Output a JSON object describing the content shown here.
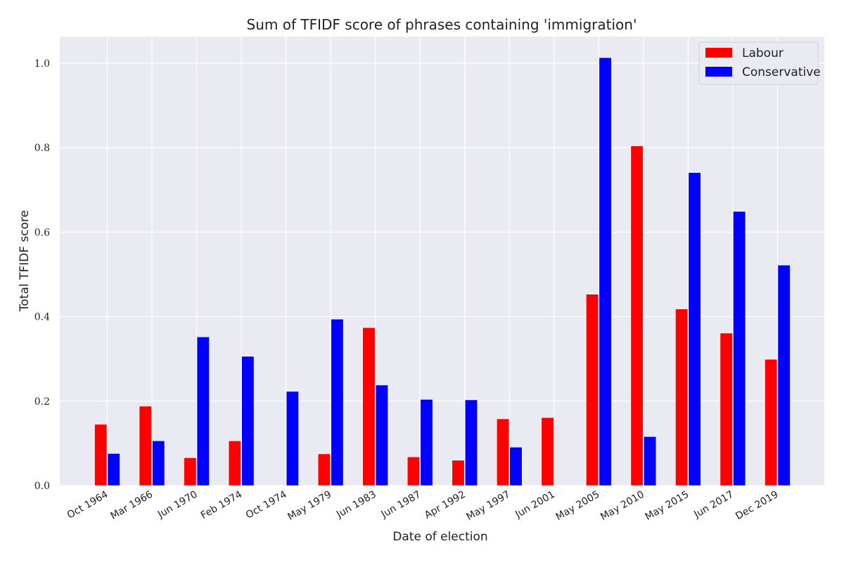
{
  "chart_data": {
    "type": "bar",
    "title": "Sum of TFIDF score of phrases containing 'immigration'",
    "xlabel": "Date of election",
    "ylabel": "Total TFIDF score",
    "categories": [
      "Oct 1964",
      "Mar 1966",
      "Jun 1970",
      "Feb 1974",
      "Oct 1974",
      "May 1979",
      "Jun 1983",
      "Jun 1987",
      "Apr 1992",
      "May 1997",
      "Jun 2001",
      "May 2005",
      "May 2010",
      "May 2015",
      "Jun 2017",
      "Dec 2019"
    ],
    "series": [
      {
        "name": "Labour",
        "color": "#ff0000",
        "values": [
          0.145,
          0.188,
          0.066,
          0.106,
          0,
          0.075,
          0.374,
          0.068,
          0.06,
          0.158,
          0.161,
          0.453,
          0.804,
          0.418,
          0.361,
          0.299
        ]
      },
      {
        "name": "Conservative",
        "color": "#0000ff",
        "values": [
          0.076,
          0.106,
          0.352,
          0.306,
          0.223,
          0.394,
          0.238,
          0.204,
          0.203,
          0.091,
          0,
          1.013,
          0.116,
          0.741,
          0.649,
          0.522
        ]
      }
    ],
    "ylim": [
      0,
      1.063
    ],
    "yticks": [
      "0.0",
      "0.2",
      "0.4",
      "0.6",
      "0.8",
      "1.0"
    ],
    "ytick_values": [
      0,
      0.2,
      0.4,
      0.6,
      0.8,
      1.0
    ],
    "grid": true,
    "legend_position": "top-right",
    "plot_background": "#eaeaf2"
  }
}
